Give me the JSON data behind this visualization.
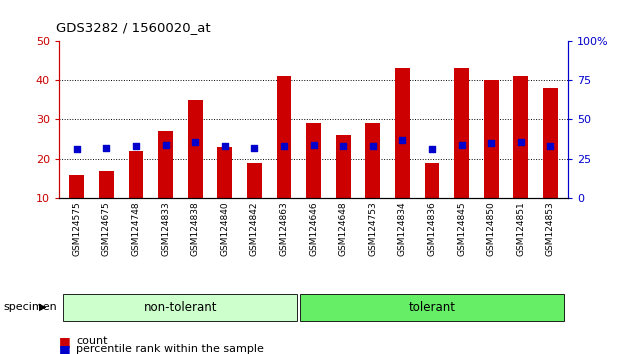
{
  "title": "GDS3282 / 1560020_at",
  "samples": [
    "GSM124575",
    "GSM124675",
    "GSM124748",
    "GSM124833",
    "GSM124838",
    "GSM124840",
    "GSM124842",
    "GSM124863",
    "GSM124646",
    "GSM124648",
    "GSM124753",
    "GSM124834",
    "GSM124836",
    "GSM124845",
    "GSM124850",
    "GSM124851",
    "GSM124853"
  ],
  "counts": [
    16,
    17,
    22,
    27,
    35,
    23,
    19,
    41,
    29,
    26,
    29,
    43,
    19,
    43,
    40,
    41,
    38
  ],
  "percentile_ranks": [
    31,
    32,
    33,
    34,
    36,
    33,
    32,
    33,
    34,
    33,
    33,
    37,
    31,
    34,
    35,
    36,
    33
  ],
  "group_labels": [
    "non-tolerant",
    "tolerant"
  ],
  "group_sizes": [
    8,
    9
  ],
  "group_colors": [
    "#ccffcc",
    "#66ee66"
  ],
  "bar_color": "#cc0000",
  "dot_color": "#0000cc",
  "ylim_left": [
    10,
    50
  ],
  "ylim_right": [
    0,
    100
  ],
  "yticks_left": [
    10,
    20,
    30,
    40,
    50
  ],
  "yticks_right": [
    0,
    25,
    50,
    75,
    100
  ],
  "axis_color_left": "#cc0000",
  "axis_color_right": "#0000cc",
  "legend_count": "count",
  "legend_pct": "percentile rank within the sample",
  "specimen_label": "specimen",
  "bar_width": 0.5,
  "grid_ticks": [
    20,
    30,
    40
  ]
}
